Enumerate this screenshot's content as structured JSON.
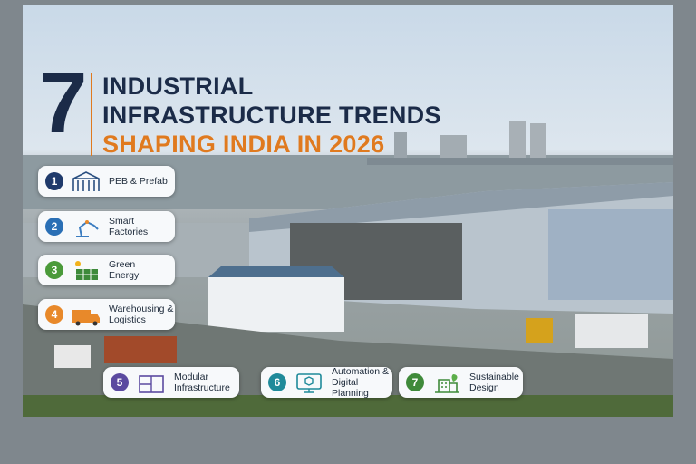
{
  "title": {
    "number": "7",
    "line1": "INDUSTRIAL",
    "line2": "INFRASTRUCTURE TRENDS",
    "line3": "SHAPING INDIA IN 2026"
  },
  "trends": [
    {
      "number": "1",
      "label_lines": [
        "PEB & Prefab"
      ]
    },
    {
      "number": "2",
      "label_lines": [
        "Smart",
        "Factories"
      ]
    },
    {
      "number": "3",
      "label_lines": [
        "Green",
        "Energy"
      ]
    },
    {
      "number": "4",
      "label_lines": [
        "Warehousing &",
        "Logistics"
      ]
    },
    {
      "number": "5",
      "label_lines": [
        "Modular",
        "Infrastructure"
      ]
    },
    {
      "number": "6",
      "label_lines": [
        "Automation &",
        "Digital Planning"
      ]
    },
    {
      "number": "7",
      "label_lines": [
        "Sustainable",
        "Design"
      ]
    }
  ]
}
